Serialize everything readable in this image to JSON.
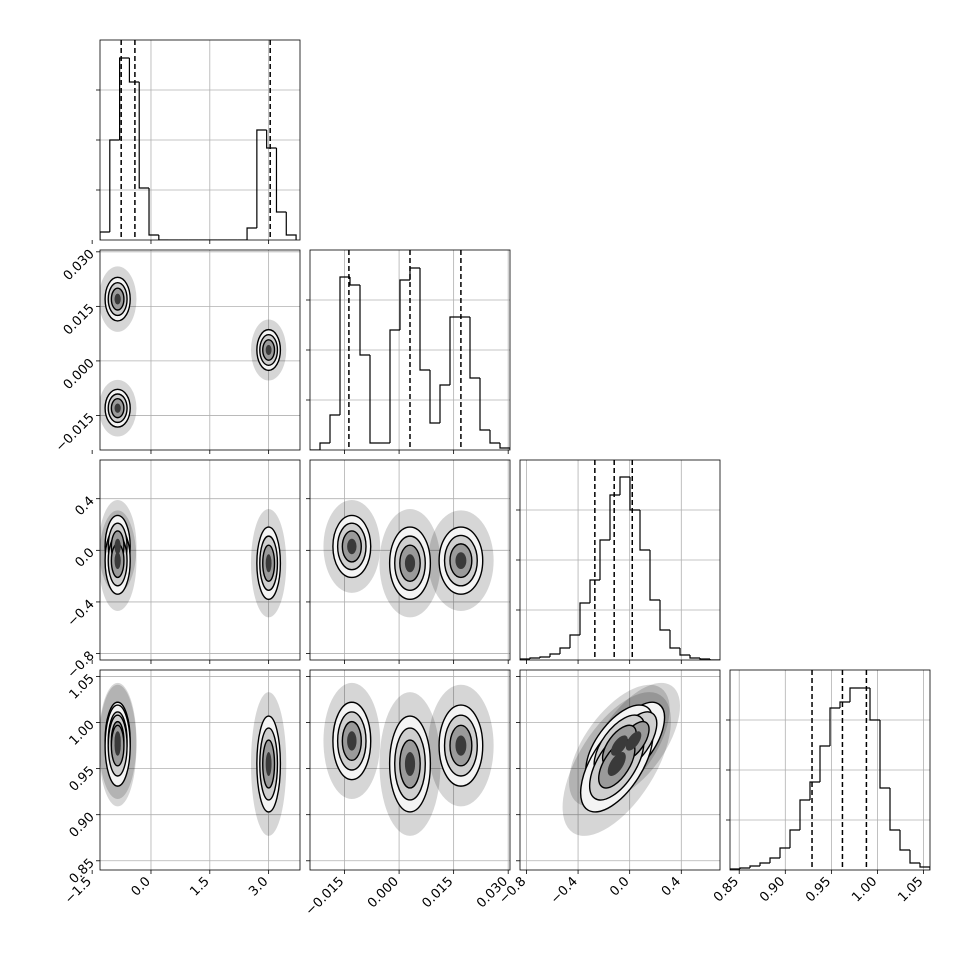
{
  "chart_data": {
    "type": "corner",
    "grid": true,
    "variables": [
      {
        "range": [
          -1.3,
          3.8
        ],
        "ticks": [
          {
            "value": -1.5,
            "label": "−1.5"
          },
          {
            "value": 0,
            "label": "0.0"
          },
          {
            "value": 1.5,
            "label": "1.5"
          },
          {
            "value": 3,
            "label": "3.0"
          }
        ],
        "bins": [
          -1.3,
          -1.05,
          -0.8,
          -0.55,
          -0.3,
          -0.05,
          0.2,
          0.45,
          0.7,
          0.95,
          1.2,
          1.45,
          1.7,
          1.95,
          2.2,
          2.45,
          2.7,
          2.95,
          3.2,
          3.45,
          3.7
        ],
        "counts": [
          8,
          100,
          182,
          158,
          52,
          5,
          0,
          0,
          0,
          0,
          0,
          0,
          0,
          0,
          0,
          12,
          110,
          92,
          28,
          5
        ],
        "hist_ylim": [
          0,
          200
        ],
        "hist_yticks": [
          50,
          100,
          150
        ],
        "quantiles": [
          -0.76,
          -0.41,
          3.04
        ]
      },
      {
        "range": [
          -0.0245,
          0.0305
        ],
        "ticks": [
          {
            "value": -0.015,
            "label": "−0.015"
          },
          {
            "value": 0,
            "label": "0.000"
          },
          {
            "value": 0.015,
            "label": "0.015"
          },
          {
            "value": 0.03,
            "label": "0.030"
          }
        ],
        "bins": [
          -0.0245,
          -0.02175,
          -0.019,
          -0.01625,
          -0.0135,
          -0.01075,
          -0.008,
          -0.00525,
          -0.0025,
          0.00025,
          0.003,
          0.00575,
          0.0085,
          0.01125,
          0.014,
          0.01675,
          0.0195,
          0.02225,
          0.025,
          0.02775,
          0.0305
        ],
        "counts": [
          0,
          7,
          35,
          173,
          165,
          95,
          7,
          7,
          120,
          170,
          182,
          80,
          27,
          65,
          133,
          133,
          72,
          20,
          7,
          2
        ],
        "hist_ylim": [
          0,
          200
        ],
        "hist_yticks": [
          50,
          100,
          150
        ],
        "quantiles": [
          -0.0138,
          0.003,
          0.017
        ]
      },
      {
        "range": [
          -0.85,
          0.7
        ],
        "ticks": [
          {
            "value": -0.8,
            "label": "−0.8"
          },
          {
            "value": -0.4,
            "label": "−0.4"
          },
          {
            "value": 0,
            "label": "0.0"
          },
          {
            "value": 0.4,
            "label": "0.4"
          }
        ],
        "bins": [
          -0.85,
          -0.7725,
          -0.695,
          -0.6175,
          -0.54,
          -0.4625,
          -0.385,
          -0.3075,
          -0.23,
          -0.1525,
          -0.075,
          0.0025,
          0.08,
          0.1575,
          0.235,
          0.3125,
          0.39,
          0.4675,
          0.545,
          0.6225,
          0.7
        ],
        "counts": [
          1,
          2,
          3,
          6,
          12,
          25,
          57,
          80,
          120,
          165,
          183,
          150,
          110,
          60,
          30,
          12,
          5,
          2,
          1,
          0
        ],
        "hist_ylim": [
          0,
          200
        ],
        "hist_yticks": [
          50,
          100,
          150
        ],
        "quantiles": [
          -0.27,
          -0.12,
          0.02
        ]
      },
      {
        "range": [
          0.84,
          1.057
        ],
        "ticks": [
          {
            "value": 0.85,
            "label": "0.85"
          },
          {
            "value": 0.9,
            "label": "0.90"
          },
          {
            "value": 0.95,
            "label": "0.95"
          },
          {
            "value": 1,
            "label": "1.00"
          },
          {
            "value": 1.05,
            "label": "1.05"
          }
        ],
        "bins": [
          0.84,
          0.85085,
          0.8617,
          0.87255,
          0.8834,
          0.89425,
          0.9051,
          0.91595,
          0.9268,
          0.93765,
          0.9485,
          0.95935,
          0.9702,
          0.98105,
          0.9919,
          1.00275,
          1.0136,
          1.02445,
          1.0353,
          1.04615,
          1.057
        ],
        "counts": [
          1,
          2,
          4,
          7,
          12,
          22,
          40,
          70,
          88,
          124,
          162,
          168,
          182,
          182,
          150,
          82,
          40,
          20,
          7,
          3
        ],
        "hist_ylim": [
          0,
          200
        ],
        "hist_yticks": [
          50,
          100,
          150
        ],
        "quantiles": [
          0.929,
          0.962,
          0.988
        ]
      }
    ],
    "clusters": [
      {
        "mean": [
          -0.85,
          -0.013,
          0.03,
          0.98
        ],
        "sigma": [
          0.16,
          0.0026,
          0.12,
          0.021
        ],
        "corr_2_3": 0.6
      },
      {
        "mean": [
          -0.85,
          0.017,
          -0.08,
          0.975
        ],
        "sigma": [
          0.16,
          0.003,
          0.13,
          0.022
        ],
        "corr_2_3": 0.6
      },
      {
        "mean": [
          3.0,
          0.003,
          -0.1,
          0.955
        ],
        "sigma": [
          0.15,
          0.0028,
          0.14,
          0.026
        ],
        "corr_2_3": 0.6
      }
    ]
  }
}
